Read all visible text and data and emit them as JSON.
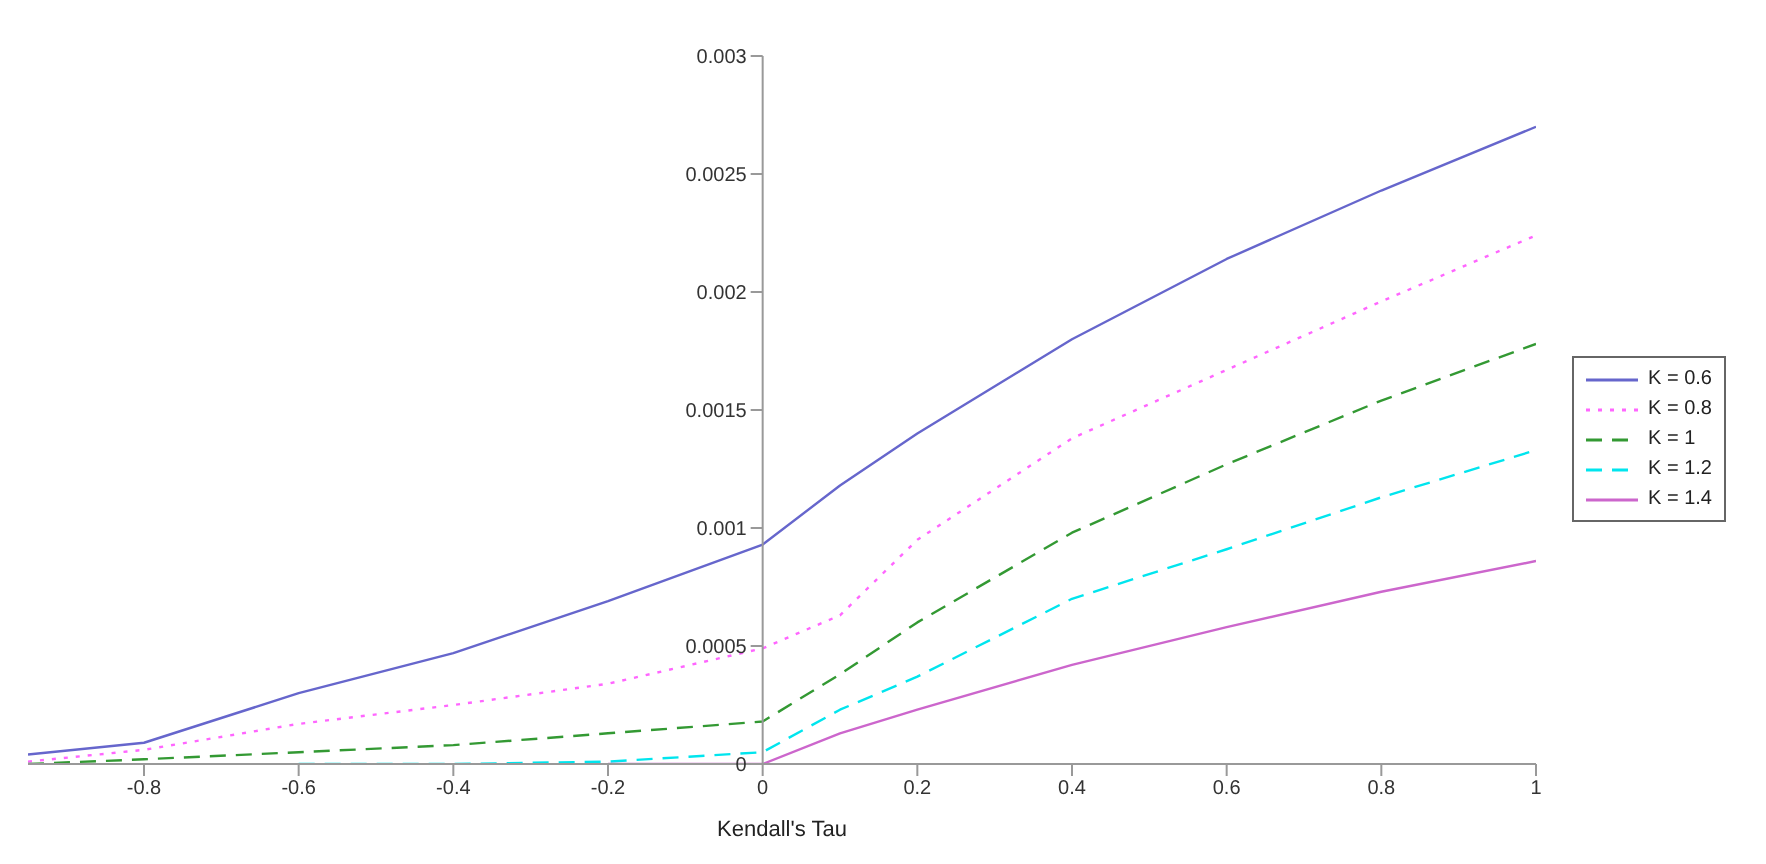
{
  "chart_data": {
    "type": "line",
    "xlabel": "Kendall's Tau",
    "x": [
      -0.95,
      -0.8,
      -0.6,
      -0.4,
      -0.2,
      0,
      0.1,
      0.2,
      0.4,
      0.6,
      0.8,
      1
    ],
    "series": [
      {
        "name": "K = 0.6",
        "color": "#6666cc",
        "line_style": "solid",
        "values": [
          4e-05,
          9e-05,
          0.0003,
          0.00047,
          0.00069,
          0.00093,
          0.00118,
          0.0014,
          0.0018,
          0.00214,
          0.00243,
          0.0027
        ]
      },
      {
        "name": "K = 0.8",
        "color": "#ff66ff",
        "line_style": "dotted",
        "values": [
          1e-05,
          6e-05,
          0.00017,
          0.00025,
          0.00034,
          0.00049,
          0.00063,
          0.00095,
          0.00138,
          0.00167,
          0.00196,
          0.00224
        ]
      },
      {
        "name": "K = 1",
        "color": "#339933",
        "line_style": "dashed",
        "values": [
          0,
          2e-05,
          5e-05,
          8e-05,
          0.00013,
          0.00018,
          0.00038,
          0.0006,
          0.00098,
          0.00127,
          0.00154,
          0.00178
        ]
      },
      {
        "name": "K = 1.2",
        "color": "#00e5ee",
        "line_style": "dashed",
        "values": [
          null,
          null,
          0,
          0,
          1e-05,
          5e-05,
          0.00023,
          0.00037,
          0.0007,
          0.00091,
          0.00113,
          0.00133
        ]
      },
      {
        "name": "K = 1.4",
        "color": "#cc66cc",
        "line_style": "solid",
        "values": [
          null,
          null,
          null,
          null,
          0,
          0,
          0.00013,
          0.00023,
          0.00042,
          0.00058,
          0.00073,
          0.00086
        ]
      }
    ],
    "xlim": [
      -0.95,
      1
    ],
    "xticks": [
      -0.8,
      -0.6,
      -0.4,
      -0.2,
      0,
      0.2,
      0.4,
      0.6,
      0.8,
      1
    ],
    "ylim": [
      0,
      0.003
    ],
    "yticks": [
      0,
      0.0005,
      0.001,
      0.0015,
      0.002,
      0.0025,
      0.003
    ],
    "grid": false,
    "legend": "right",
    "marker": "none"
  }
}
